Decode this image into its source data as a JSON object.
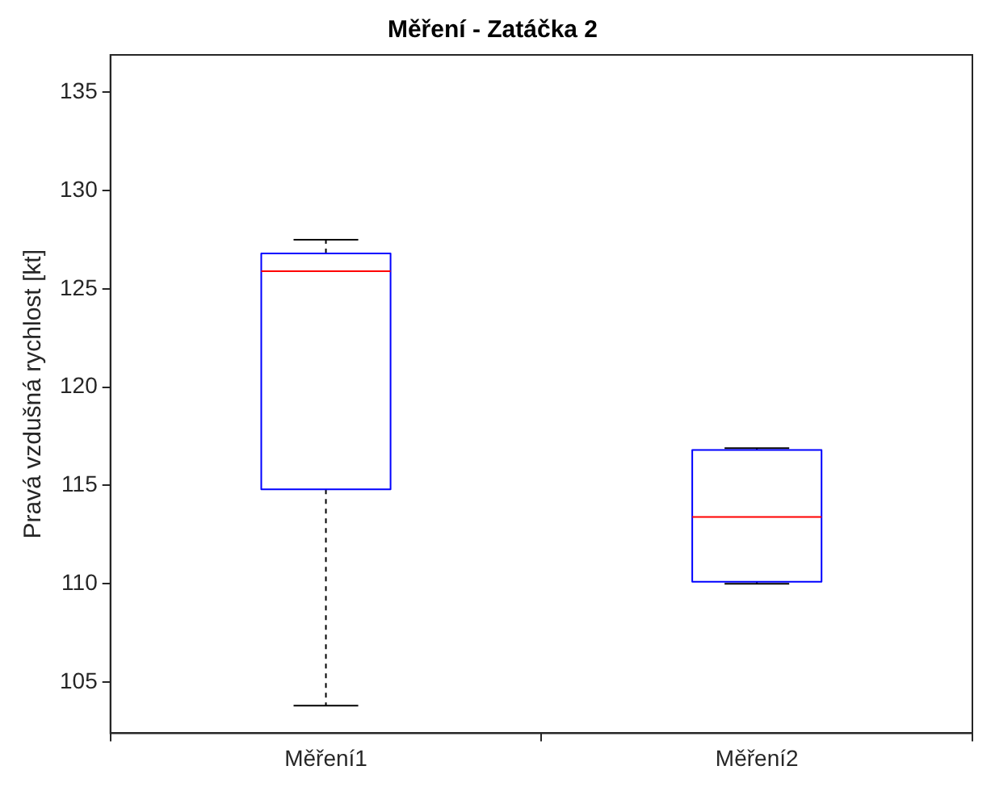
{
  "chart_data": {
    "type": "box",
    "title": "Měření - Zatáčka 2",
    "ylabel": "Pravá vzdušná rychlost [kt]",
    "categories": [
      "Měření1",
      "Měření2"
    ],
    "series": [
      {
        "color": "#0000ff",
        "boxes": [
          {
            "low": 103.8,
            "q1": 114.8,
            "median": 125.9,
            "q3": 126.8,
            "high": 127.5
          },
          {
            "low": 110.0,
            "q1": 110.1,
            "median": 113.4,
            "q3": 116.8,
            "high": 116.9
          }
        ]
      }
    ],
    "ylim": [
      102.4,
      136.9
    ],
    "yticks": [
      105,
      110,
      115,
      120,
      125,
      130,
      135
    ],
    "grid": false,
    "legend": false
  }
}
